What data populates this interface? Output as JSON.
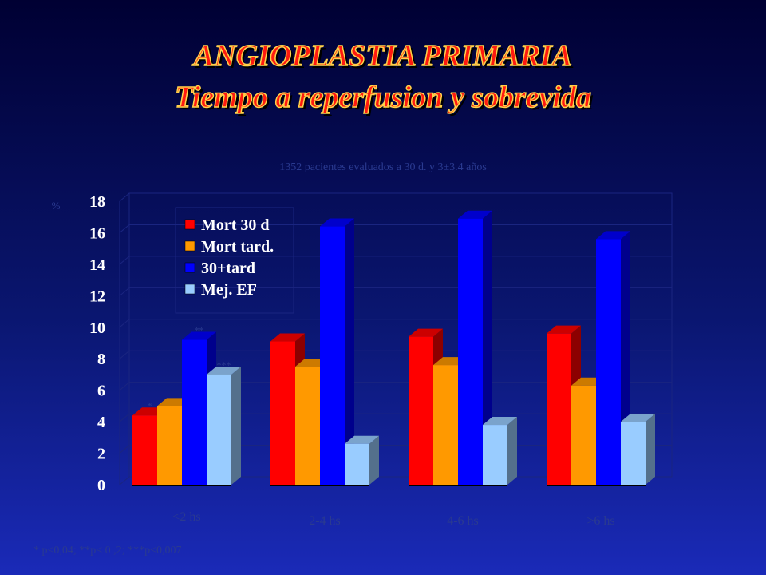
{
  "title": {
    "line1": "ANGIOPLASTIA PRIMARIA",
    "line2": "Tiempo a reperfusion y sobrevida"
  },
  "subtitle": "1352 pacientes evaluados a 30 d. y  3±3.4 años",
  "footnote": "* p<0,04; **p< 0 ,2;  ***p<0,007",
  "colors": {
    "background": "#0a1670",
    "title": "#ff1a10",
    "title_outline": "#ffd24a"
  },
  "chart_data": {
    "type": "bar",
    "ylabel": "%",
    "ylim": [
      0,
      18
    ],
    "yticks": [
      0,
      2,
      4,
      6,
      8,
      10,
      12,
      14,
      16,
      18
    ],
    "categories": [
      "<2 hs",
      "2-4 hs",
      "4-6 hs",
      ">6 hs"
    ],
    "series": [
      {
        "name": "Mort 30 d",
        "color": "#ff0000",
        "values": [
          4.4,
          9.1,
          9.4,
          9.6
        ]
      },
      {
        "name": "Mort tard.",
        "color": "#ff9900",
        "values": [
          5.0,
          7.5,
          7.6,
          6.3
        ]
      },
      {
        "name": "30+tard",
        "color": "#0000ff",
        "values": [
          9.2,
          16.4,
          16.9,
          15.6
        ]
      },
      {
        "name": "Mej. EF",
        "color": "#99ccff",
        "values": [
          7.0,
          2.6,
          3.8,
          4.0
        ]
      }
    ],
    "annotations": [
      {
        "category": 0,
        "series": 0,
        "text": "*"
      },
      {
        "category": 0,
        "series": 2,
        "text": "**"
      },
      {
        "category": 0,
        "series": 3,
        "text": "***"
      }
    ],
    "legend_position": "top-left",
    "grid": true
  }
}
